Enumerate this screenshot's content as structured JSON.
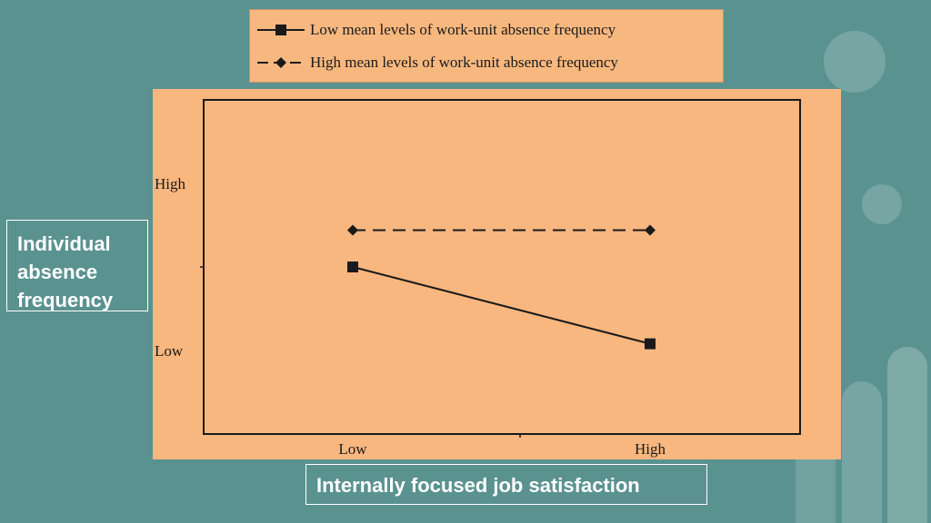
{
  "legend": {
    "low_label": "Low mean levels of work-unit absence frequency",
    "high_label": "High mean levels of work-unit absence frequency"
  },
  "labels": {
    "y_axis_box": "Individual absence frequency",
    "x_axis_box": "Internally focused job satisfaction"
  },
  "colors": {
    "background": "#5a9290",
    "chart_fill": "#f8b77f",
    "line": "#1a1a1a"
  },
  "chart_data": {
    "type": "line",
    "categories": [
      "Low",
      "High"
    ],
    "x_ticks": [
      "Low",
      "High"
    ],
    "y_ticks": [
      "Low",
      "High"
    ],
    "ylim": [
      0,
      10
    ],
    "y_tick_values": [
      2.5,
      7.5
    ],
    "grid": false,
    "legend_position": "top",
    "series": [
      {
        "name": "Low mean levels of work-unit absence frequency",
        "values": [
          5.0,
          2.7
        ],
        "marker": "square",
        "dash": "solid"
      },
      {
        "name": "High mean levels of work-unit absence frequency",
        "values": [
          6.1,
          6.1
        ],
        "marker": "diamond",
        "dash": "dashed"
      }
    ]
  }
}
